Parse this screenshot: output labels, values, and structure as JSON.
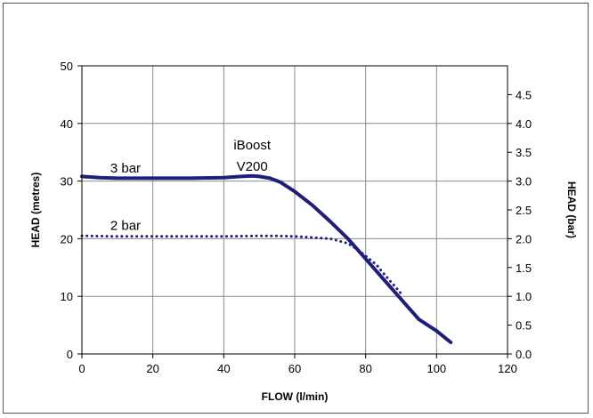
{
  "chart_data": {
    "type": "line",
    "title": "",
    "xlabel": "FLOW (l/min)",
    "ylabel": "HEAD (metres)",
    "y2label": "HEAD (bar)",
    "xlim": [
      0,
      120
    ],
    "ylim": [
      0,
      50
    ],
    "y2lim": [
      0,
      5
    ],
    "x_ticks": [
      "0",
      "20",
      "40",
      "60",
      "80",
      "100",
      "120"
    ],
    "y_ticks": [
      "0",
      "10",
      "20",
      "30",
      "40",
      "50"
    ],
    "y2_ticks": [
      "0.0",
      "0.5",
      "1.0",
      "1.5",
      "2.0",
      "2.5",
      "3.0",
      "3.5",
      "4.0",
      "4.5"
    ],
    "grid": true,
    "series": [
      {
        "name": "3 bar",
        "style": "solid",
        "color": "#1f1f7a",
        "x": [
          0,
          5,
          10,
          20,
          30,
          40,
          45,
          48,
          50,
          53,
          56,
          60,
          65,
          70,
          75,
          80,
          85,
          90,
          95,
          100,
          104
        ],
        "y": [
          30.8,
          30.6,
          30.5,
          30.5,
          30.5,
          30.6,
          30.8,
          30.9,
          30.8,
          30.5,
          29.8,
          28.2,
          25.8,
          23.0,
          20.0,
          16.5,
          13.0,
          9.5,
          6.0,
          4.0,
          2.0
        ]
      },
      {
        "name": "2 bar",
        "style": "dotted",
        "color": "#1f1f7a",
        "x": [
          0,
          10,
          20,
          30,
          40,
          50,
          55,
          60,
          65,
          70,
          75,
          78,
          80,
          83,
          85,
          90
        ],
        "y": [
          20.5,
          20.4,
          20.4,
          20.4,
          20.4,
          20.5,
          20.5,
          20.4,
          20.2,
          20.0,
          19.2,
          18.0,
          17.0,
          15.5,
          14.0,
          10.5
        ]
      }
    ],
    "annotations": [
      {
        "text": "3 bar",
        "x": 8,
        "y": 31.5
      },
      {
        "text": "2 bar",
        "x": 8,
        "y": 21.5
      },
      {
        "text": "iBoost",
        "x": 48,
        "y": 35.5
      },
      {
        "text": "V200",
        "x": 48,
        "y": 31.8
      }
    ]
  }
}
